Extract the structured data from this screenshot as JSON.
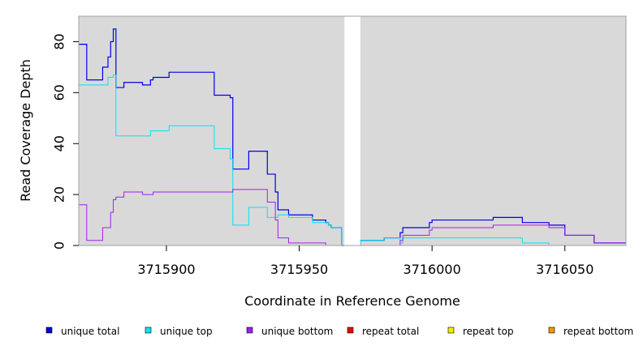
{
  "chart_data": {
    "type": "line",
    "title": "",
    "xlabel": "Coordinate in Reference Genome",
    "ylabel": "Read Coverage Depth",
    "xlim": [
      3715867,
      3716073
    ],
    "ylim": [
      0,
      90
    ],
    "xticks": [
      3715900,
      3715950,
      3716000,
      3716050
    ],
    "yticks": [
      0,
      20,
      40,
      60,
      80
    ],
    "grid": false,
    "background_color": "#d9d9d9",
    "gap": [
      3715967,
      3715973
    ],
    "legend_position": "bottom",
    "series": [
      {
        "name": "unique total",
        "color": "#0000ee",
        "points": [
          [
            3715867,
            79
          ],
          [
            3715870,
            79
          ],
          [
            3715870,
            65
          ],
          [
            3715876,
            65
          ],
          [
            3715876,
            70
          ],
          [
            3715878,
            70
          ],
          [
            3715878,
            74
          ],
          [
            3715879,
            74
          ],
          [
            3715879,
            80
          ],
          [
            3715880,
            80
          ],
          [
            3715880,
            85
          ],
          [
            3715881,
            85
          ],
          [
            3715881,
            62
          ],
          [
            3715884,
            62
          ],
          [
            3715884,
            64
          ],
          [
            3715891,
            64
          ],
          [
            3715891,
            63
          ],
          [
            3715894,
            63
          ],
          [
            3715894,
            65
          ],
          [
            3715895,
            65
          ],
          [
            3715895,
            66
          ],
          [
            3715901,
            66
          ],
          [
            3715901,
            68
          ],
          [
            3715918,
            68
          ],
          [
            3715918,
            59
          ],
          [
            3715924,
            59
          ],
          [
            3715924,
            58
          ],
          [
            3715925,
            58
          ],
          [
            3715925,
            30
          ],
          [
            3715931,
            30
          ],
          [
            3715931,
            37
          ],
          [
            3715938,
            37
          ],
          [
            3715938,
            28
          ],
          [
            3715941,
            28
          ],
          [
            3715941,
            21
          ],
          [
            3715942,
            21
          ],
          [
            3715942,
            14
          ],
          [
            3715946,
            14
          ],
          [
            3715946,
            12
          ],
          [
            3715955,
            12
          ],
          [
            3715955,
            10
          ],
          [
            3715960,
            10
          ],
          [
            3715960,
            9
          ],
          [
            3715961,
            9
          ],
          [
            3715961,
            8
          ],
          [
            3715962,
            8
          ],
          [
            3715962,
            7
          ],
          [
            3715966,
            7
          ],
          [
            3715966,
            0
          ],
          [
            3715967,
            0
          ]
        ]
      },
      {
        "name": "unique top",
        "color": "#00e5ee",
        "points": [
          [
            3715867,
            63
          ],
          [
            3715878,
            63
          ],
          [
            3715878,
            66
          ],
          [
            3715880,
            66
          ],
          [
            3715880,
            67
          ],
          [
            3715881,
            67
          ],
          [
            3715881,
            43
          ],
          [
            3715894,
            43
          ],
          [
            3715894,
            45
          ],
          [
            3715901,
            45
          ],
          [
            3715901,
            47
          ],
          [
            3715918,
            47
          ],
          [
            3715918,
            38
          ],
          [
            3715924,
            38
          ],
          [
            3715924,
            34
          ],
          [
            3715925,
            34
          ],
          [
            3715925,
            8
          ],
          [
            3715931,
            8
          ],
          [
            3715931,
            15
          ],
          [
            3715938,
            15
          ],
          [
            3715938,
            11
          ],
          [
            3715942,
            11
          ],
          [
            3715942,
            12
          ],
          [
            3715946,
            12
          ],
          [
            3715946,
            11
          ],
          [
            3715955,
            11
          ],
          [
            3715955,
            9
          ],
          [
            3715961,
            9
          ],
          [
            3715961,
            8
          ],
          [
            3715962,
            8
          ],
          [
            3715962,
            7
          ],
          [
            3715966,
            7
          ],
          [
            3715966,
            0
          ],
          [
            3715967,
            0
          ]
        ]
      },
      {
        "name": "unique bottom",
        "color": "#a020f0",
        "points": [
          [
            3715867,
            16
          ],
          [
            3715870,
            16
          ],
          [
            3715870,
            2
          ],
          [
            3715876,
            2
          ],
          [
            3715876,
            7
          ],
          [
            3715879,
            7
          ],
          [
            3715879,
            13
          ],
          [
            3715880,
            13
          ],
          [
            3715880,
            18
          ],
          [
            3715881,
            18
          ],
          [
            3715881,
            19
          ],
          [
            3715884,
            19
          ],
          [
            3715884,
            21
          ],
          [
            3715891,
            21
          ],
          [
            3715891,
            20
          ],
          [
            3715895,
            20
          ],
          [
            3715895,
            21
          ],
          [
            3715925,
            21
          ],
          [
            3715925,
            22
          ],
          [
            3715938,
            22
          ],
          [
            3715938,
            17
          ],
          [
            3715941,
            17
          ],
          [
            3715941,
            10
          ],
          [
            3715942,
            10
          ],
          [
            3715942,
            3
          ],
          [
            3715946,
            3
          ],
          [
            3715946,
            1
          ],
          [
            3715960,
            1
          ],
          [
            3715960,
            0
          ],
          [
            3715967,
            0
          ]
        ]
      },
      {
        "name": "repeat total",
        "color": "#ee0000",
        "points": [
          [
            3715867,
            0
          ],
          [
            3715967,
            0
          ]
        ]
      },
      {
        "name": "repeat top",
        "color": "#eeee00",
        "points": [
          [
            3715867,
            0
          ],
          [
            3715967,
            0
          ]
        ]
      },
      {
        "name": "repeat bottom",
        "color": "#ee9a00",
        "points": [
          [
            3715867,
            0
          ],
          [
            3715967,
            0
          ]
        ]
      }
    ],
    "series_right": [
      {
        "name": "unique total",
        "color": "#0000ee",
        "points": [
          [
            3715973,
            0
          ],
          [
            3715973,
            2
          ],
          [
            3715982,
            2
          ],
          [
            3715982,
            3
          ],
          [
            3715988,
            3
          ],
          [
            3715988,
            5
          ],
          [
            3715989,
            5
          ],
          [
            3715989,
            7
          ],
          [
            3715999,
            7
          ],
          [
            3715999,
            9
          ],
          [
            3716000,
            9
          ],
          [
            3716000,
            10
          ],
          [
            3716023,
            10
          ],
          [
            3716023,
            11
          ],
          [
            3716034,
            11
          ],
          [
            3716034,
            9
          ],
          [
            3716044,
            9
          ],
          [
            3716044,
            8
          ],
          [
            3716050,
            8
          ],
          [
            3716050,
            4
          ],
          [
            3716061,
            4
          ],
          [
            3716061,
            1
          ],
          [
            3716073,
            1
          ]
        ]
      },
      {
        "name": "unique top",
        "color": "#00e5ee",
        "points": [
          [
            3715973,
            0
          ],
          [
            3715973,
            2
          ],
          [
            3715982,
            2
          ],
          [
            3715982,
            3
          ],
          [
            3715988,
            3
          ],
          [
            3715988,
            1
          ],
          [
            3715989,
            1
          ],
          [
            3715989,
            3
          ],
          [
            3716034,
            3
          ],
          [
            3716034,
            1
          ],
          [
            3716044,
            1
          ],
          [
            3716044,
            0
          ],
          [
            3716073,
            0
          ]
        ]
      },
      {
        "name": "unique bottom",
        "color": "#a020f0",
        "points": [
          [
            3715973,
            0
          ],
          [
            3715988,
            0
          ],
          [
            3715988,
            2
          ],
          [
            3715989,
            2
          ],
          [
            3715989,
            4
          ],
          [
            3715999,
            4
          ],
          [
            3715999,
            6
          ],
          [
            3716000,
            6
          ],
          [
            3716000,
            7
          ],
          [
            3716023,
            7
          ],
          [
            3716023,
            8
          ],
          [
            3716044,
            8
          ],
          [
            3716044,
            7
          ],
          [
            3716050,
            7
          ],
          [
            3716050,
            4
          ],
          [
            3716061,
            4
          ],
          [
            3716061,
            1
          ],
          [
            3716073,
            1
          ]
        ]
      },
      {
        "name": "repeat bottom",
        "color": "#ee9a00",
        "points": [
          [
            3715973,
            0
          ],
          [
            3716073,
            0
          ]
        ]
      }
    ]
  },
  "legend": [
    {
      "label": "unique total",
      "color": "#0000ee"
    },
    {
      "label": "unique top",
      "color": "#00e5ee"
    },
    {
      "label": "unique bottom",
      "color": "#a020f0"
    },
    {
      "label": "repeat total",
      "color": "#ee0000"
    },
    {
      "label": "repeat top",
      "color": "#eeee00"
    },
    {
      "label": "repeat bottom",
      "color": "#ee9a00"
    }
  ]
}
